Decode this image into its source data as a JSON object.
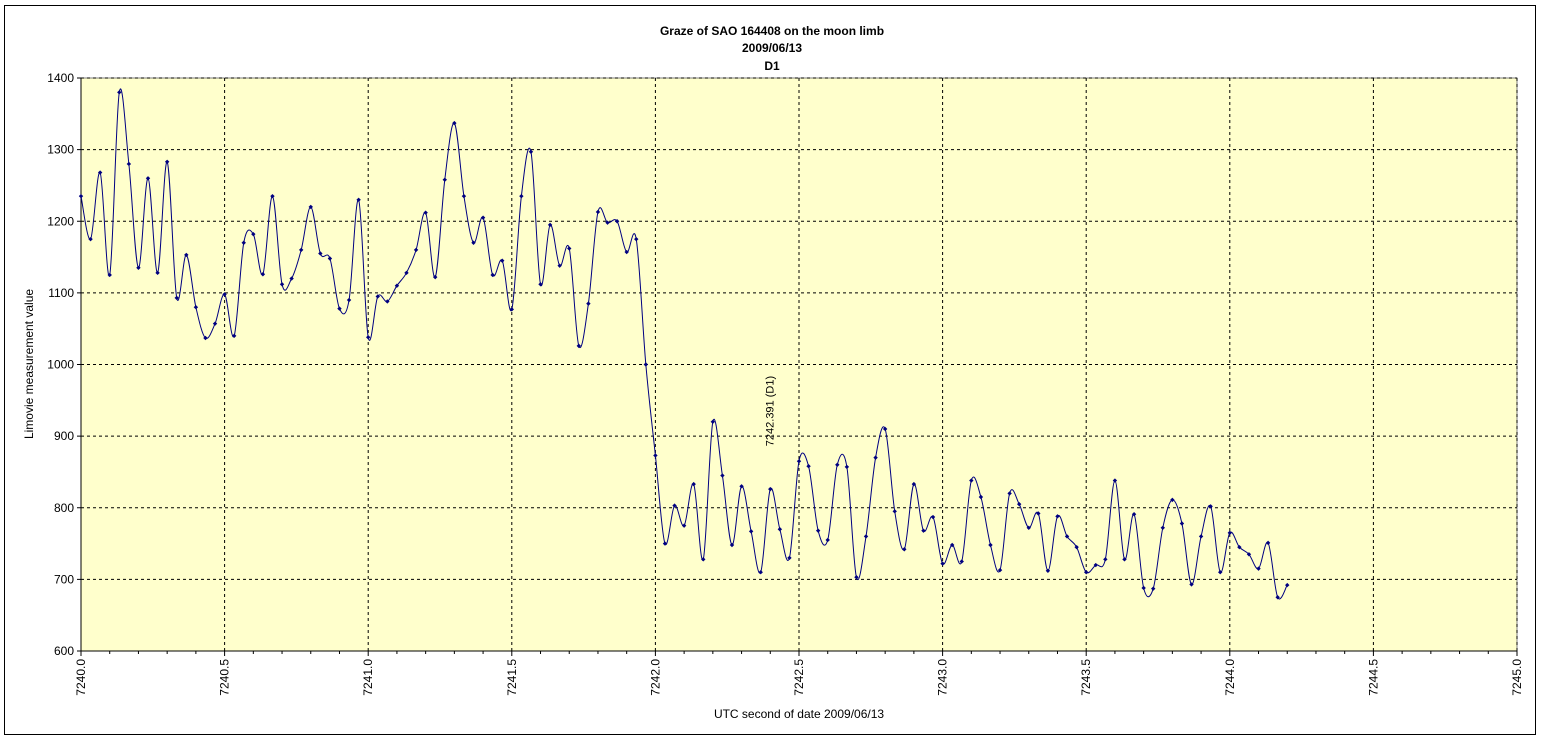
{
  "chart_data": {
    "type": "line",
    "title": [
      "Graze of SAO  164408 on the moon limb",
      "2009/06/13",
      "D1"
    ],
    "xlabel": "UTC  second of date 2009/06/13",
    "ylabel": "Limovie measurement value",
    "xlim": [
      7240.0,
      7245.0
    ],
    "ylim": [
      600,
      1400
    ],
    "x_ticks": [
      "7240.0",
      "7240.5",
      "7241.0",
      "7241.5",
      "7242.0",
      "7242.5",
      "7243.0",
      "7243.5",
      "7244.0",
      "7244.5",
      "7245.0"
    ],
    "y_ticks": [
      "600",
      "700",
      "800",
      "900",
      "1000",
      "1100",
      "1200",
      "1300",
      "1400"
    ],
    "grid": true,
    "plot_background": "#ffffcc",
    "series_color": "#000080",
    "marker": "diamond",
    "annotations": [
      {
        "text": "7242.391 (D1)",
        "x": 7242.391,
        "y": 935
      }
    ],
    "series": [
      {
        "x_start": 7240.0,
        "x_step": 0.0333333,
        "values": [
          1235,
          1175,
          1268,
          1125,
          1380,
          1280,
          1135,
          1260,
          1128,
          1283,
          1093,
          1153,
          1080,
          1037,
          1057,
          1098,
          1040,
          1170,
          1182,
          1126,
          1235,
          1112,
          1120,
          1160,
          1220,
          1155,
          1148,
          1078,
          1090,
          1230,
          1038,
          1095,
          1088,
          1110,
          1128,
          1160,
          1212,
          1122,
          1258,
          1337,
          1235,
          1170,
          1205,
          1125,
          1145,
          1077,
          1235,
          1297,
          1112,
          1195,
          1138,
          1162,
          1026,
          1085,
          1213,
          1198,
          1200,
          1157,
          1175,
          1000,
          873,
          750,
          803,
          775,
          833,
          728,
          920,
          845,
          748,
          830,
          767,
          710,
          826,
          770,
          730,
          865,
          858,
          768,
          755,
          860,
          857,
          703,
          760,
          870,
          910,
          795,
          742,
          833,
          768,
          787,
          722,
          748,
          725,
          838,
          815,
          748,
          713,
          820,
          805,
          772,
          792,
          712,
          788,
          760,
          745,
          710,
          720,
          728,
          838,
          728,
          791,
          688,
          687,
          772,
          811,
          778,
          693,
          760,
          802,
          710,
          765,
          745,
          735,
          715,
          751,
          675,
          692
        ]
      }
    ]
  }
}
